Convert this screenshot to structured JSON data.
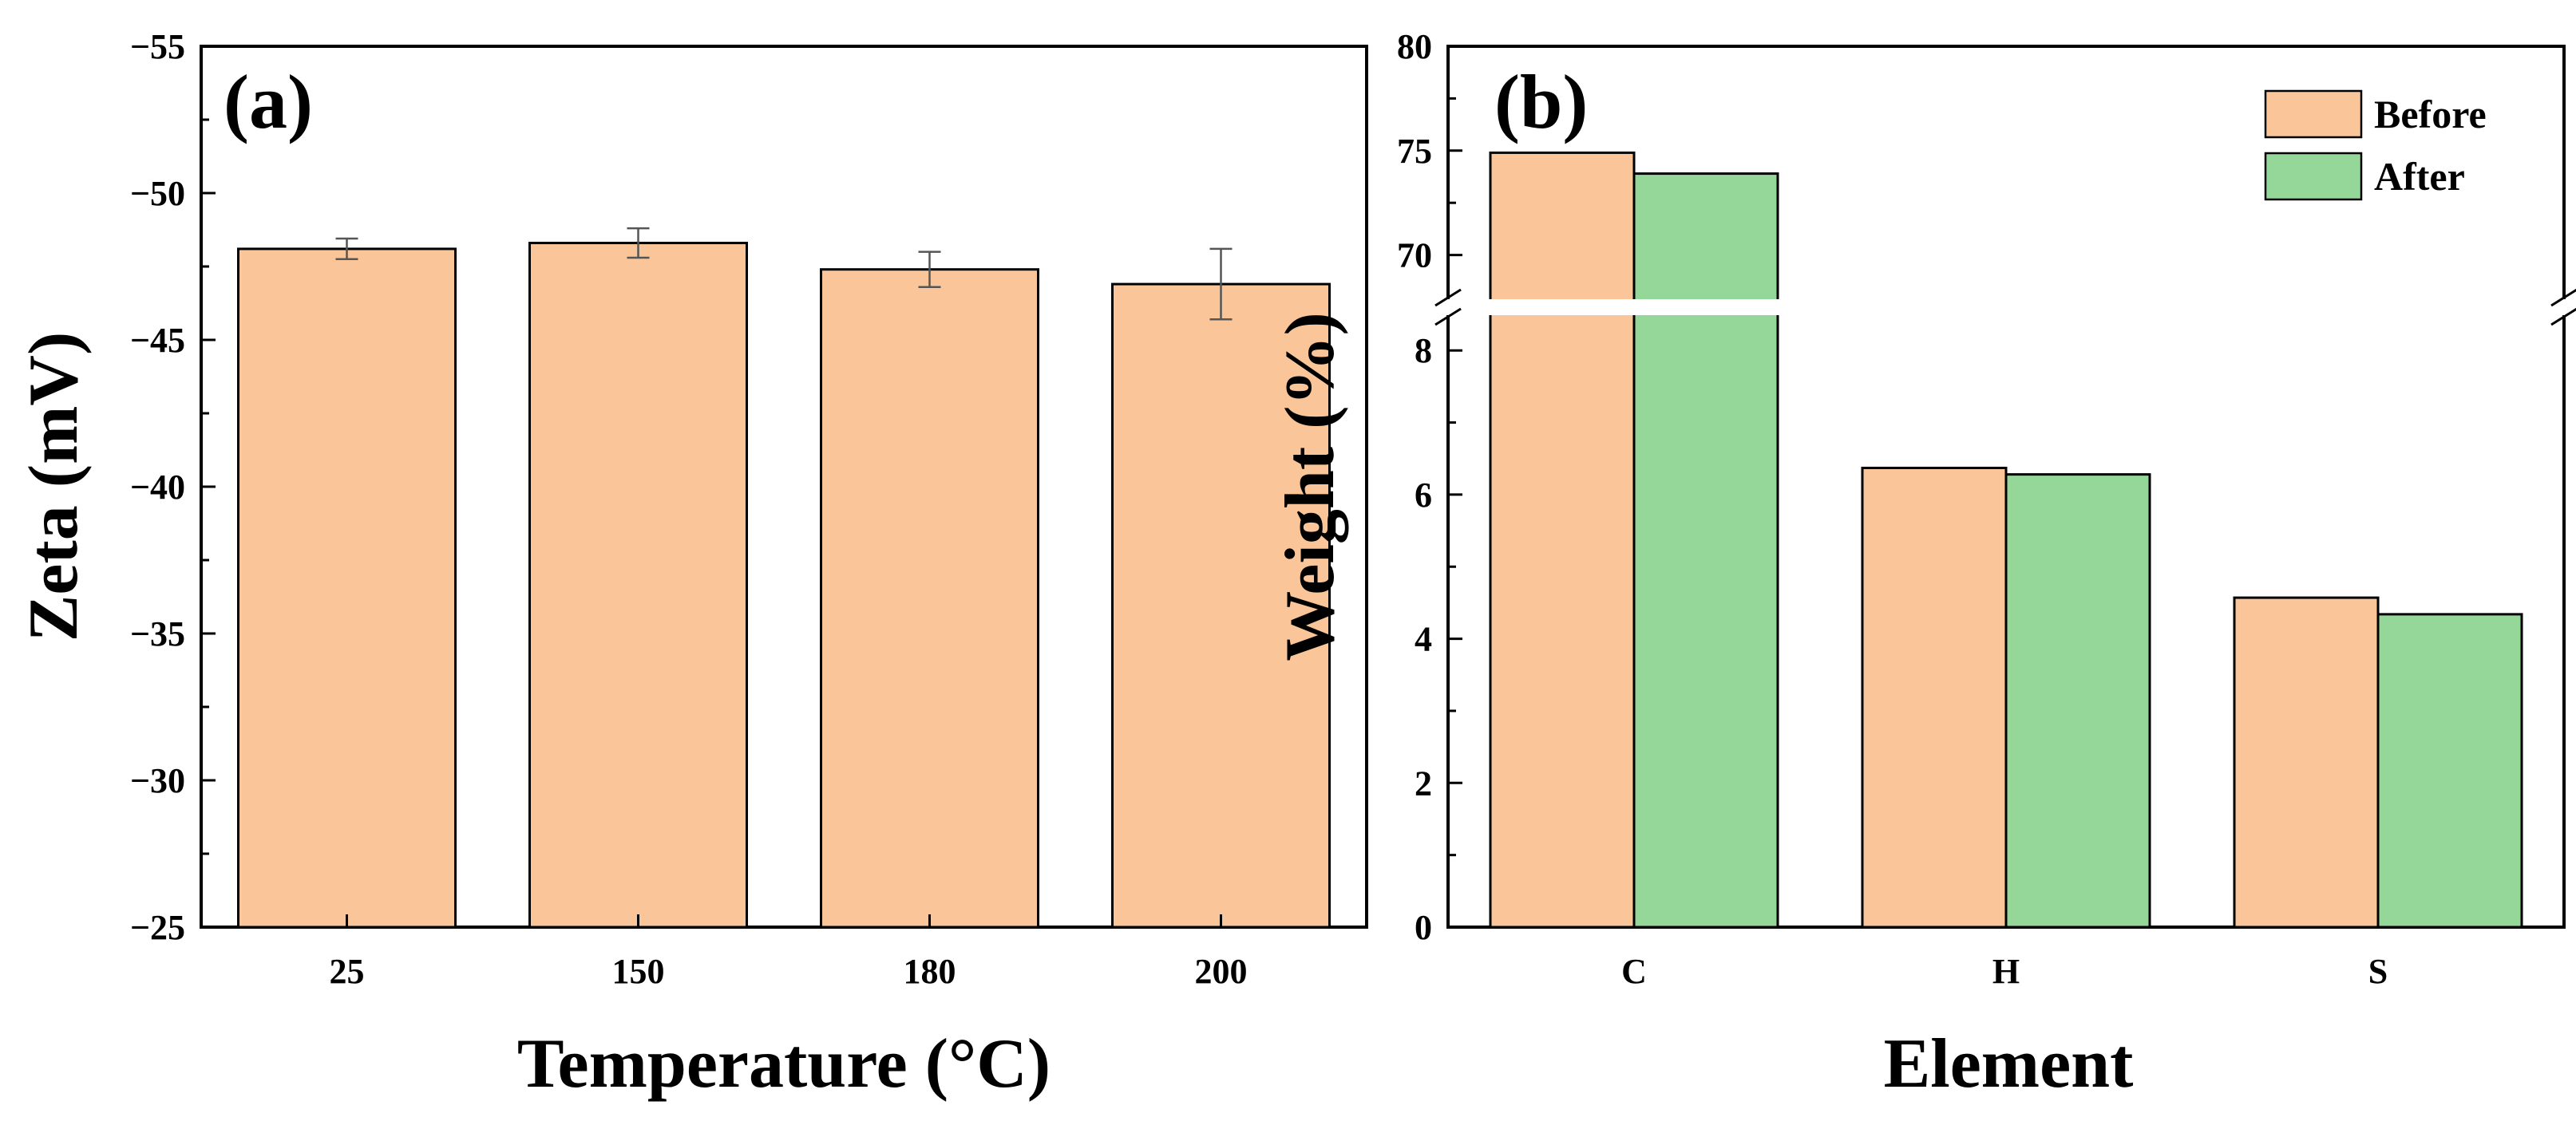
{
  "chart_data": [
    {
      "type": "bar",
      "panel_label": "(a)",
      "title": "",
      "xlabel": "Temperature (°C)",
      "ylabel": "Zeta (mV)",
      "categories": [
        "25",
        "150",
        "180",
        "200"
      ],
      "values": [
        -48.1,
        -48.3,
        -47.4,
        -46.9
      ],
      "errors": [
        0.35,
        0.5,
        0.6,
        1.2
      ],
      "ylim": [
        -25,
        -55
      ],
      "yticks": [
        -25,
        -30,
        -35,
        -40,
        -45,
        -50,
        -55
      ],
      "ytick_labels": [
        "−25",
        "−30",
        "−35",
        "−40",
        "−45",
        "−50",
        "−55"
      ],
      "bar_color": "#FAC699",
      "grid": false
    },
    {
      "type": "bar",
      "panel_label": "(b)",
      "title": "",
      "xlabel": "Element",
      "ylabel": "Weight (%)",
      "categories": [
        "C",
        "H",
        "S"
      ],
      "series": [
        {
          "name": "Before",
          "values": [
            74.9,
            6.37,
            4.57
          ],
          "color": "#FAC699"
        },
        {
          "name": "After",
          "values": [
            73.9,
            6.28,
            4.34
          ],
          "color": "#95D699"
        }
      ],
      "axis_break": {
        "lower_range": [
          0,
          8.6
        ],
        "upper_range": [
          67.5,
          80
        ]
      },
      "yticks_lower": [
        0,
        2,
        4,
        6,
        8
      ],
      "yticks_upper": [
        70,
        75,
        80
      ],
      "legend_position": "top-right",
      "grid": false
    }
  ]
}
